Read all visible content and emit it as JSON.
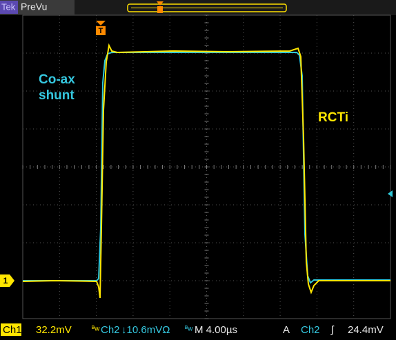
{
  "header": {
    "brand": "Tek",
    "mode": "PreVu"
  },
  "labels": {
    "left": [
      "Co-ax",
      "shunt"
    ],
    "right": "RCTi"
  },
  "channel_marker": "1",
  "status": {
    "ch1": "Ch1",
    "ch1_scale": "32.2mV",
    "bw1": "ᴮw",
    "ch2": "Ch2",
    "ch2_scale": "↓10.6mVΩ",
    "bw2": "ᴮw",
    "timebase": "M 4.00µs",
    "trigger_mode": "A",
    "trigger_source": "Ch2",
    "trigger_slope": "ʃ",
    "trigger_level": "24.4mV"
  }
}
